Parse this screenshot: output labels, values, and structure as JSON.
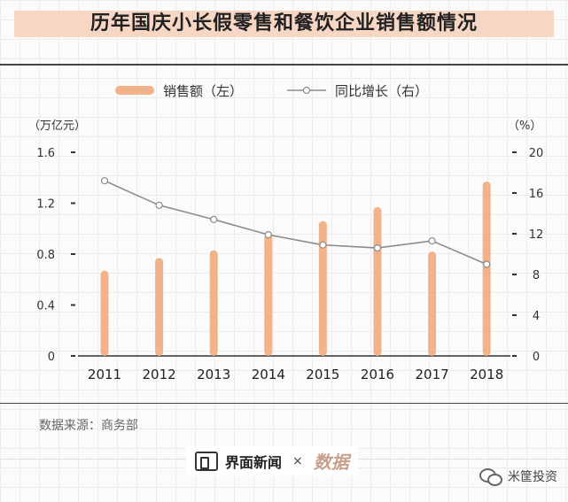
{
  "title": "历年国庆小长假零售和餐饮企业销售额情况",
  "source": "数据来源：商务部",
  "footer": {
    "brand": "界面新闻",
    "separator": "×",
    "partner": "数据"
  },
  "watermark": {
    "text": "米筐投资"
  },
  "chart_data": {
    "type": "bar",
    "categories": [
      "2011",
      "2012",
      "2013",
      "2014",
      "2015",
      "2016",
      "2017",
      "2018"
    ],
    "series": [
      {
        "name": "销售额（左）",
        "type": "bar",
        "axis": "left",
        "color": "#f2b38a",
        "values": [
          0.67,
          0.77,
          0.83,
          0.96,
          1.06,
          1.17,
          0.82,
          1.37
        ]
      },
      {
        "name": "同比增长（右）",
        "type": "line",
        "axis": "right",
        "color": "#8c8c8c",
        "values": [
          17.2,
          14.8,
          13.4,
          11.9,
          10.9,
          10.6,
          11.3,
          9.0
        ]
      }
    ],
    "y_left": {
      "label": "（万亿元）",
      "ticks": [
        "0",
        "0.4",
        "0.8",
        "1.2",
        "1.6"
      ],
      "ylim": [
        0,
        1.6
      ]
    },
    "y_right": {
      "label": "（%）",
      "ticks": [
        "0",
        "4",
        "8",
        "12",
        "16",
        "20"
      ],
      "ylim": [
        0,
        20
      ]
    },
    "legend_position": "top"
  }
}
